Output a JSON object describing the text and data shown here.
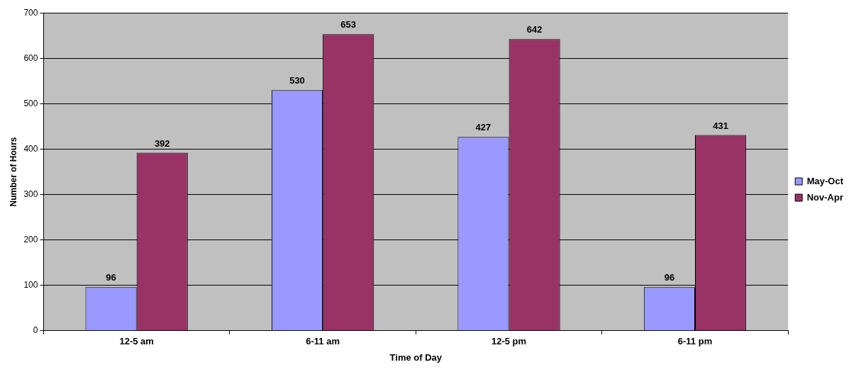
{
  "chart_data": {
    "type": "bar",
    "xlabel": "Time of Day",
    "ylabel": "Number of Hours",
    "categories": [
      "12-5 am",
      "6-11 am",
      "12-5 pm",
      "6-11 pm"
    ],
    "series": [
      {
        "name": "May-Oct",
        "color": "#9999ff",
        "values": [
          96,
          530,
          427,
          96
        ]
      },
      {
        "name": "Nov-Apr",
        "color": "#993366",
        "values": [
          392,
          653,
          642,
          431
        ]
      }
    ],
    "ylim": [
      0,
      700
    ],
    "yticks": [
      0,
      100,
      200,
      300,
      400,
      500,
      600,
      700
    ],
    "grid": "y",
    "legend": "right",
    "data_labels": true
  }
}
